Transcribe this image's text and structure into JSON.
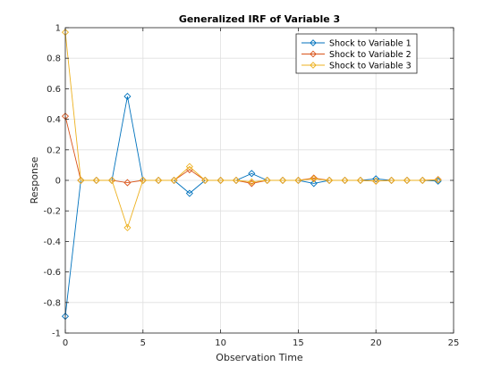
{
  "chart_data": {
    "type": "line",
    "title": "Generalized IRF of Variable 3",
    "xlabel": "Observation Time",
    "ylabel": "Response",
    "xlim": [
      0,
      25
    ],
    "ylim": [
      -1,
      1
    ],
    "xticks": [
      0,
      5,
      10,
      15,
      20,
      25
    ],
    "yticks": [
      -1,
      -0.8,
      -0.6,
      -0.4,
      -0.2,
      0,
      0.2,
      0.4,
      0.6,
      0.8,
      1
    ],
    "xtick_labels": [
      "0",
      "5",
      "10",
      "15",
      "20",
      "25"
    ],
    "ytick_labels": [
      "-1",
      "-0.8",
      "-0.6",
      "-0.4",
      "-0.2",
      "0",
      "0.2",
      "0.4",
      "0.6",
      "0.8",
      "1"
    ],
    "grid": true,
    "legend_position": "top-right",
    "marker": "diamond",
    "x": [
      0,
      1,
      2,
      3,
      4,
      5,
      6,
      7,
      8,
      9,
      10,
      11,
      12,
      13,
      14,
      15,
      16,
      17,
      18,
      19,
      20,
      21,
      22,
      23,
      24
    ],
    "series": [
      {
        "name": "Shock to Variable 1",
        "color": "#0072BD",
        "values": [
          -0.89,
          0,
          0,
          0,
          0.55,
          0,
          0,
          0,
          -0.085,
          0,
          0,
          0,
          0.045,
          0,
          0,
          0,
          -0.02,
          0,
          0,
          0,
          0.01,
          0,
          0,
          0,
          -0.005
        ]
      },
      {
        "name": "Shock to Variable 2",
        "color": "#D95319",
        "values": [
          0.42,
          0,
          0,
          0,
          -0.015,
          0,
          0,
          0,
          0.07,
          0,
          0,
          0,
          -0.02,
          0,
          0,
          0,
          0.015,
          0,
          0,
          0,
          -0.005,
          0,
          0,
          0,
          0.005
        ]
      },
      {
        "name": "Shock to Variable 3",
        "color": "#EDB120",
        "values": [
          0.97,
          0,
          0,
          0,
          -0.31,
          0,
          0,
          0,
          0.09,
          0,
          0,
          0,
          -0.01,
          0,
          0,
          0,
          0.01,
          0,
          0,
          0,
          -0.005,
          0,
          0,
          0,
          0.003
        ]
      }
    ]
  }
}
